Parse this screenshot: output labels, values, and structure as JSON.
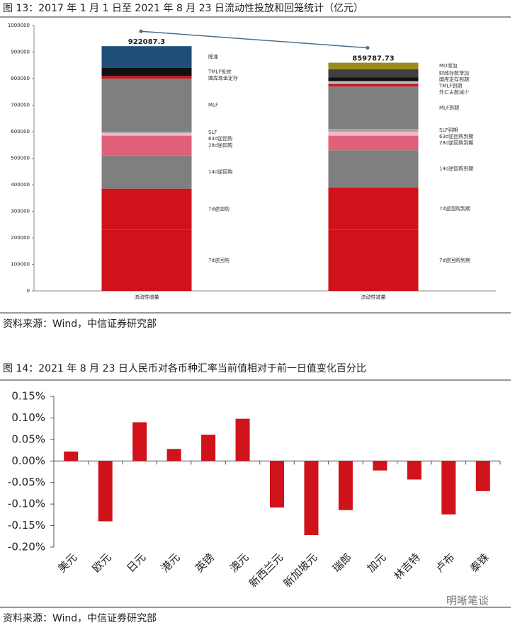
{
  "chart_data": [
    {
      "type": "stacked_bar",
      "title": "图 13：2017 年 1 月 1 日至 2021 年 8 月 23 日流动性投放和回笼统计（亿元）",
      "source": "资料来源：Wind，中信证券研究部",
      "categories": [
        "流动性增量",
        "流动性减量"
      ],
      "totals": [
        922087.3,
        859787.73
      ],
      "ylim": [
        0,
        1000000
      ],
      "yticks": [
        0,
        100000,
        200000,
        300000,
        400000,
        500000,
        600000,
        700000,
        800000,
        900000,
        1000000
      ],
      "stacks": [
        [
          {
            "name": "7d逆回购",
            "color": "#d0121b",
            "value": 230000
          },
          {
            "name": "7d逆回购",
            "color": "#d0121b",
            "value": 155000
          },
          {
            "name": "14d逆回购",
            "color": "#7f7f7f",
            "value": 125000
          },
          {
            "name": "28d逆回购",
            "color": "#e0607a",
            "value": 75000
          },
          {
            "name": "63d逆回购",
            "color": "#f2b8c4",
            "value": 10000
          },
          {
            "name": "SLF",
            "color": "#a6a6a6",
            "value": 5000
          },
          {
            "name": "MLF",
            "color": "#7f7f7f",
            "value": 200000
          },
          {
            "name": "国库现金定存",
            "color": "#d0121b",
            "value": 10000
          },
          {
            "name": "TMLF投放",
            "color": "#111111",
            "value": 30000
          },
          {
            "name": "降准",
            "color": "#1f4e79",
            "value": 82087.3
          }
        ],
        [
          {
            "name": "7d逆回购到期",
            "color": "#d0121b",
            "value": 230000
          },
          {
            "name": "7d逆回购到期",
            "color": "#d0121b",
            "value": 160000
          },
          {
            "name": "14d逆回购到期",
            "color": "#7f7f7f",
            "value": 140000
          },
          {
            "name": "28d逆回购到期",
            "color": "#e0607a",
            "value": 55000
          },
          {
            "name": "63d逆回购到期",
            "color": "#f2b8c4",
            "value": 15000
          },
          {
            "name": "SLF到期",
            "color": "#a6a6a6",
            "value": 10000
          },
          {
            "name": "MLF到期",
            "color": "#7f7f7f",
            "value": 160000
          },
          {
            "name": "外汇占款减少",
            "color": "#d0121b",
            "value": 10000
          },
          {
            "name": "TMLF到期",
            "color": "#bfbfbf",
            "value": 10000
          },
          {
            "name": "国库定存到期",
            "color": "#111111",
            "value": 15000
          },
          {
            "name": "财政存款增加",
            "color": "#404040",
            "value": 30000
          },
          {
            "name": "MO增加",
            "color": "#9c8a1a",
            "value": 24787.73
          }
        ]
      ]
    },
    {
      "type": "bar",
      "title": "图 14：2021 年 8 月 23 日人民币对各币种汇率当前值相对于前一日值变化百分比",
      "source": "资料来源：Wind，中信证券研究部",
      "categories": [
        "美元",
        "欧元",
        "日元",
        "港元",
        "英镑",
        "澳元",
        "新西兰元",
        "新加坡元",
        "瑞郎",
        "加元",
        "林吉特",
        "卢布",
        "泰铢"
      ],
      "values": [
        0.022,
        -0.14,
        0.09,
        0.028,
        0.061,
        0.098,
        -0.108,
        -0.172,
        -0.114,
        -0.022,
        -0.043,
        -0.124,
        -0.07
      ],
      "color": "#d0121b",
      "ylim": [
        -0.2,
        0.15
      ],
      "yticks": [
        {
          "value": 0.15,
          "label": "0.15%"
        },
        {
          "value": 0.1,
          "label": "0.10%"
        },
        {
          "value": 0.05,
          "label": "0.05%"
        },
        {
          "value": 0,
          "label": "0.00%"
        },
        {
          "value": -0.05,
          "label": "-0.05%"
        },
        {
          "value": -0.1,
          "label": "-0.10%"
        },
        {
          "value": -0.15,
          "label": "-0.15%"
        },
        {
          "value": -0.2,
          "label": "-0.20%"
        }
      ]
    }
  ],
  "watermark": "明晰笔谈"
}
